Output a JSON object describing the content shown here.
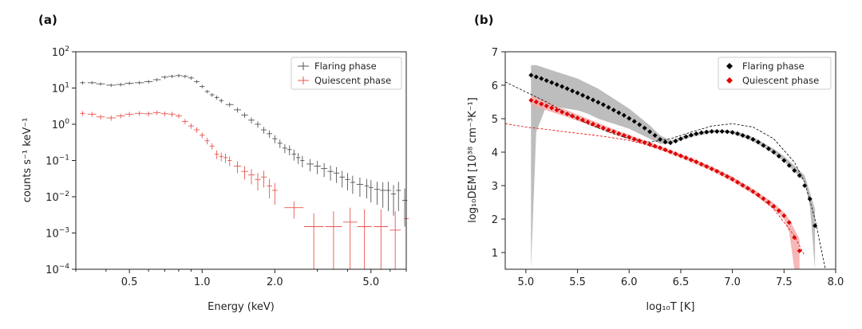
{
  "figure": {
    "panel_a_label": "(a)",
    "panel_b_label": "(b)"
  },
  "chart_data": [
    {
      "type": "scatter",
      "panel": "(a)",
      "title": "",
      "xlabel": "Energy (keV)",
      "ylabel": "counts s⁻¹ keV⁻¹",
      "xscale": "log",
      "yscale": "log",
      "xlim": [
        0.3,
        7.0
      ],
      "ylim": [
        0.0001,
        100
      ],
      "x_ticks": [
        0.5,
        1.0,
        2.0,
        5.0
      ],
      "x_tick_labels": [
        "0.5",
        "1.0",
        "2.0",
        "5.0"
      ],
      "y_ticks": [
        0.0001,
        0.001,
        0.01,
        0.1,
        1,
        10,
        100
      ],
      "y_tick_bases": [
        "10",
        "10",
        "10",
        "10",
        "10",
        "10",
        "10"
      ],
      "y_tick_exps": [
        "−4",
        "−3",
        "−2",
        "−1",
        "0",
        "1",
        "2"
      ],
      "legend_position": "top-right",
      "series": [
        {
          "name": "Flaring phase",
          "color": "#555555",
          "x": [
            0.32,
            0.35,
            0.38,
            0.42,
            0.46,
            0.5,
            0.55,
            0.6,
            0.65,
            0.7,
            0.75,
            0.8,
            0.85,
            0.9,
            0.95,
            1.0,
            1.05,
            1.1,
            1.15,
            1.2,
            1.3,
            1.4,
            1.5,
            1.6,
            1.7,
            1.8,
            1.9,
            2.0,
            2.1,
            2.2,
            2.3,
            2.4,
            2.5,
            2.6,
            2.8,
            3.0,
            3.2,
            3.4,
            3.6,
            3.8,
            4.0,
            4.2,
            4.5,
            4.8,
            5.0,
            5.3,
            5.6,
            5.9,
            6.2,
            6.5,
            6.9
          ],
          "y": [
            14,
            14,
            13,
            12,
            12.5,
            13.5,
            14,
            15,
            17,
            20,
            21,
            22,
            21,
            19,
            15,
            11,
            8,
            6.5,
            5.5,
            4.5,
            3.5,
            2.5,
            1.8,
            1.3,
            1.0,
            0.7,
            0.55,
            0.4,
            0.3,
            0.22,
            0.2,
            0.15,
            0.12,
            0.1,
            0.08,
            0.07,
            0.06,
            0.05,
            0.045,
            0.035,
            0.03,
            0.025,
            0.022,
            0.02,
            0.018,
            0.016,
            0.015,
            0.015,
            0.012,
            0.015,
            0.008
          ],
          "err_y_low": [
            12.5,
            12.5,
            11.6,
            10.7,
            11.1,
            12,
            12.4,
            13.3,
            15.1,
            17.8,
            18.7,
            19.6,
            18.7,
            16.9,
            13.4,
            9.8,
            7.1,
            5.7,
            4.8,
            3.9,
            3.0,
            2.1,
            1.5,
            1.05,
            0.8,
            0.55,
            0.42,
            0.3,
            0.22,
            0.16,
            0.14,
            0.1,
            0.08,
            0.065,
            0.05,
            0.042,
            0.035,
            0.028,
            0.024,
            0.018,
            0.015,
            0.012,
            0.01,
            0.009,
            0.007,
            0.006,
            0.005,
            0.004,
            0.003,
            0.004,
            0.0015
          ],
          "err_y_high": [
            15.5,
            15.5,
            14.4,
            13.3,
            13.9,
            15,
            15.6,
            16.7,
            18.9,
            22.2,
            23.3,
            24.4,
            23.3,
            21.1,
            16.6,
            12.2,
            8.9,
            7.3,
            6.2,
            5.1,
            4.0,
            2.9,
            2.1,
            1.55,
            1.2,
            0.85,
            0.68,
            0.5,
            0.38,
            0.28,
            0.26,
            0.2,
            0.16,
            0.135,
            0.11,
            0.098,
            0.085,
            0.072,
            0.066,
            0.052,
            0.045,
            0.038,
            0.034,
            0.031,
            0.029,
            0.026,
            0.025,
            0.026,
            0.021,
            0.026,
            0.017
          ]
        },
        {
          "name": "Quiescent phase",
          "color": "#e8554e",
          "x": [
            0.32,
            0.35,
            0.38,
            0.42,
            0.46,
            0.5,
            0.55,
            0.6,
            0.65,
            0.7,
            0.75,
            0.8,
            0.85,
            0.9,
            0.95,
            1.0,
            1.05,
            1.1,
            1.15,
            1.2,
            1.25,
            1.3,
            1.4,
            1.5,
            1.6,
            1.7,
            1.8,
            1.9,
            2.0,
            2.4,
            2.9,
            3.5,
            4.1,
            4.7,
            5.5,
            6.3,
            7.0
          ],
          "y": [
            2.0,
            1.9,
            1.6,
            1.5,
            1.7,
            1.9,
            2.0,
            1.95,
            2.1,
            1.95,
            1.9,
            1.7,
            1.2,
            0.9,
            0.7,
            0.5,
            0.35,
            0.25,
            0.15,
            0.13,
            0.12,
            0.1,
            0.07,
            0.05,
            0.04,
            0.03,
            0.035,
            0.02,
            0.015,
            0.005,
            0.0015,
            0.0015,
            0.002,
            0.0015,
            0.0015,
            0.0012,
            0.0025
          ],
          "err_y_low": [
            1.7,
            1.6,
            1.35,
            1.25,
            1.45,
            1.6,
            1.7,
            1.65,
            1.8,
            1.65,
            1.6,
            1.45,
            1.0,
            0.75,
            0.58,
            0.41,
            0.28,
            0.2,
            0.11,
            0.095,
            0.085,
            0.07,
            0.045,
            0.03,
            0.022,
            0.015,
            0.018,
            0.009,
            0.006,
            0.0025,
            0.0001,
            0.0001,
            0.0001,
            0.0001,
            0.0001,
            0.0001,
            0.0001
          ],
          "err_y_high": [
            2.3,
            2.2,
            1.85,
            1.75,
            1.95,
            2.2,
            2.3,
            2.25,
            2.4,
            2.25,
            2.2,
            1.95,
            1.4,
            1.05,
            0.82,
            0.59,
            0.42,
            0.3,
            0.19,
            0.165,
            0.155,
            0.13,
            0.095,
            0.07,
            0.058,
            0.045,
            0.052,
            0.031,
            0.024,
            0.0075,
            0.0035,
            0.004,
            0.005,
            0.0045,
            0.0045,
            0.004,
            0.006
          ]
        }
      ]
    },
    {
      "type": "line",
      "panel": "(b)",
      "title": "",
      "xlabel": "log₁₀T [K]",
      "ylabel": "log₁₀DEM [10³⁸ cm⁻³K⁻¹]",
      "xlim": [
        4.8,
        8.0
      ],
      "ylim": [
        0.5,
        7.0
      ],
      "x_ticks": [
        5.0,
        5.5,
        6.0,
        6.5,
        7.0,
        7.5,
        8.0
      ],
      "x_tick_labels": [
        "5.0",
        "5.5",
        "6.0",
        "6.5",
        "7.0",
        "7.5",
        "8.0"
      ],
      "y_ticks": [
        1,
        2,
        3,
        4,
        5,
        6,
        7
      ],
      "y_tick_labels": [
        "1",
        "2",
        "3",
        "4",
        "5",
        "6",
        "7"
      ],
      "legend_position": "top-right",
      "series": [
        {
          "name": "Flaring phase",
          "color": "#000000",
          "marker": "diamond",
          "x": [
            5.05,
            5.1,
            5.15,
            5.2,
            5.25,
            5.3,
            5.35,
            5.4,
            5.45,
            5.5,
            5.55,
            5.6,
            5.65,
            5.7,
            5.75,
            5.8,
            5.85,
            5.9,
            5.95,
            6.0,
            6.05,
            6.1,
            6.15,
            6.2,
            6.25,
            6.3,
            6.35,
            6.4,
            6.45,
            6.5,
            6.55,
            6.6,
            6.65,
            6.7,
            6.75,
            6.8,
            6.85,
            6.9,
            6.95,
            7.0,
            7.05,
            7.1,
            7.15,
            7.2,
            7.25,
            7.3,
            7.35,
            7.4,
            7.45,
            7.5,
            7.55,
            7.6,
            7.65,
            7.7,
            7.75,
            7.8
          ],
          "y": [
            6.3,
            6.25,
            6.2,
            6.14,
            6.08,
            6.02,
            5.96,
            5.9,
            5.83,
            5.77,
            5.7,
            5.63,
            5.56,
            5.49,
            5.42,
            5.34,
            5.26,
            5.18,
            5.1,
            5.01,
            4.92,
            4.82,
            4.72,
            4.61,
            4.5,
            4.38,
            4.3,
            4.28,
            4.33,
            4.4,
            4.46,
            4.51,
            4.55,
            4.58,
            4.6,
            4.62,
            4.62,
            4.62,
            4.61,
            4.59,
            4.55,
            4.5,
            4.45,
            4.38,
            4.3,
            4.2,
            4.1,
            4.0,
            3.88,
            3.75,
            3.6,
            3.45,
            3.3,
            3.0,
            2.6,
            1.8
          ],
          "band_x": [
            5.05,
            5.1,
            5.2,
            5.3,
            5.4,
            5.5,
            5.6,
            5.7,
            5.8,
            5.9,
            6.0,
            6.1,
            6.2,
            6.3,
            6.4,
            6.5,
            6.6,
            6.7,
            6.8,
            6.9,
            7.0,
            7.1,
            7.2,
            7.3,
            7.4,
            7.5,
            7.6,
            7.7,
            7.75,
            7.8
          ],
          "band_low": [
            0.5,
            4.6,
            5.4,
            5.35,
            5.3,
            5.25,
            5.15,
            5.0,
            4.9,
            4.8,
            4.7,
            4.55,
            4.4,
            4.25,
            4.25,
            4.35,
            4.45,
            4.52,
            4.58,
            4.6,
            4.55,
            4.45,
            4.32,
            4.15,
            3.95,
            3.72,
            3.42,
            3.1,
            2.4,
            0.5
          ],
          "band_high": [
            6.6,
            6.6,
            6.5,
            6.4,
            6.3,
            6.2,
            6.05,
            5.9,
            5.7,
            5.5,
            5.3,
            5.05,
            4.8,
            4.5,
            4.35,
            4.45,
            4.55,
            4.62,
            4.66,
            4.66,
            4.64,
            4.56,
            4.45,
            4.28,
            4.1,
            3.88,
            3.6,
            3.3,
            2.8,
            2.3
          ],
          "fit_x": [
            4.8,
            5.0,
            5.2,
            5.4,
            5.6,
            5.8,
            6.0,
            6.2,
            6.4,
            6.6,
            6.8,
            7.0,
            7.2,
            7.4,
            7.6,
            7.7,
            7.8,
            7.9
          ],
          "fit_y": [
            6.1,
            5.8,
            5.5,
            5.15,
            4.85,
            4.6,
            4.4,
            4.3,
            4.4,
            4.6,
            4.78,
            4.85,
            4.75,
            4.4,
            3.7,
            3.1,
            2.0,
            0.5
          ]
        },
        {
          "name": "Quiescent phase",
          "color": "#e00000",
          "marker": "diamond",
          "x": [
            5.05,
            5.1,
            5.15,
            5.2,
            5.25,
            5.3,
            5.35,
            5.4,
            5.45,
            5.5,
            5.55,
            5.6,
            5.65,
            5.7,
            5.75,
            5.8,
            5.85,
            5.9,
            5.95,
            6.0,
            6.05,
            6.1,
            6.15,
            6.2,
            6.25,
            6.3,
            6.35,
            6.4,
            6.45,
            6.5,
            6.55,
            6.6,
            6.65,
            6.7,
            6.75,
            6.8,
            6.85,
            6.9,
            6.95,
            7.0,
            7.05,
            7.1,
            7.15,
            7.2,
            7.25,
            7.3,
            7.35,
            7.4,
            7.45,
            7.5,
            7.55,
            7.6,
            7.65
          ],
          "y": [
            5.55,
            5.5,
            5.44,
            5.38,
            5.32,
            5.26,
            5.2,
            5.14,
            5.08,
            5.02,
            4.96,
            4.9,
            4.84,
            4.78,
            4.72,
            4.66,
            4.61,
            4.55,
            4.5,
            4.45,
            4.39,
            4.34,
            4.29,
            4.23,
            4.18,
            4.13,
            4.07,
            4.01,
            3.95,
            3.89,
            3.83,
            3.77,
            3.71,
            3.64,
            3.57,
            3.5,
            3.43,
            3.35,
            3.27,
            3.19,
            3.1,
            3.01,
            2.92,
            2.82,
            2.72,
            2.61,
            2.5,
            2.38,
            2.25,
            2.1,
            1.9,
            1.45,
            1.05
          ],
          "band_x": [
            5.05,
            5.1,
            5.2,
            5.4,
            5.6,
            5.8,
            6.0,
            6.2,
            6.4,
            6.6,
            6.8,
            7.0,
            7.2,
            7.4,
            7.5,
            7.55,
            7.6,
            7.65
          ],
          "band_low": [
            5.4,
            5.35,
            5.25,
            5.05,
            4.82,
            4.6,
            4.38,
            4.17,
            3.95,
            3.7,
            3.44,
            3.12,
            2.75,
            2.3,
            2.0,
            1.6,
            0.5,
            0.5
          ],
          "band_high": [
            5.7,
            5.65,
            5.5,
            5.25,
            5.0,
            4.75,
            4.52,
            4.3,
            4.07,
            3.83,
            3.57,
            3.27,
            2.9,
            2.48,
            2.2,
            2.0,
            1.7,
            1.4
          ],
          "fit_x": [
            4.8,
            5.0,
            5.2,
            5.4,
            5.6,
            5.8,
            6.0,
            6.2,
            6.4,
            6.6,
            6.8,
            7.0,
            7.2,
            7.4,
            7.6,
            7.7
          ],
          "fit_y": [
            4.85,
            4.75,
            4.68,
            4.6,
            4.53,
            4.45,
            4.35,
            4.2,
            4.0,
            3.78,
            3.52,
            3.22,
            2.82,
            2.3,
            1.5,
            0.9
          ]
        }
      ]
    }
  ]
}
